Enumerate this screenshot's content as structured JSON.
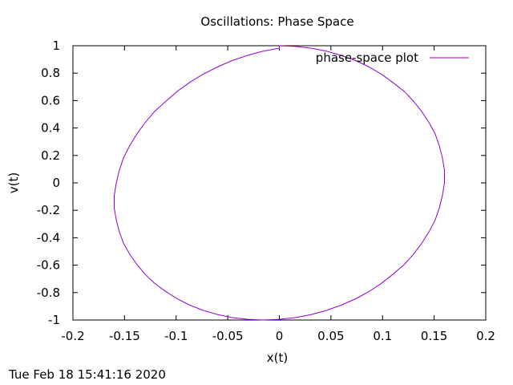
{
  "chart_data": {
    "type": "line",
    "title": "Oscillations: Phase Space",
    "xlabel": "x(t)",
    "ylabel": "v(t)",
    "xlim": [
      -0.2,
      0.2
    ],
    "ylim": [
      -1,
      1
    ],
    "xticks": [
      "-0.2",
      "-0.15",
      "-0.1",
      "-0.05",
      "0",
      "0.05",
      "0.1",
      "0.15",
      "0.2"
    ],
    "yticks": [
      "-1",
      "-0.8",
      "-0.6",
      "-0.4",
      "-0.2",
      "0",
      "0.2",
      "0.4",
      "0.6",
      "0.8",
      "1"
    ],
    "grid": false,
    "legend_position": "top-right",
    "series": [
      {
        "name": "phase-space plot",
        "color": "#9400d3",
        "x": [
          0.0,
          0.016,
          0.031,
          0.046,
          0.06,
          0.074,
          0.087,
          0.099,
          0.11,
          0.121,
          0.13,
          0.138,
          0.145,
          0.151,
          0.155,
          0.158,
          0.16,
          0.16,
          0.158,
          0.155,
          0.151,
          0.145,
          0.138,
          0.13,
          0.121,
          0.11,
          0.099,
          0.087,
          0.074,
          0.06,
          0.046,
          0.031,
          0.016,
          0.0,
          -0.016,
          -0.031,
          -0.046,
          -0.06,
          -0.074,
          -0.087,
          -0.099,
          -0.11,
          -0.121,
          -0.13,
          -0.138,
          -0.145,
          -0.151,
          -0.155,
          -0.158,
          -0.16,
          -0.16,
          -0.158,
          -0.155,
          -0.151,
          -0.145,
          -0.138,
          -0.13,
          -0.121,
          -0.11,
          -0.099,
          -0.087,
          -0.074,
          -0.06,
          -0.046,
          -0.031,
          -0.016,
          0.0
        ],
        "y": [
          1.0,
          0.995,
          0.982,
          0.96,
          0.929,
          0.891,
          0.845,
          0.792,
          0.732,
          0.667,
          0.595,
          0.52,
          0.44,
          0.357,
          0.271,
          0.183,
          0.093,
          0.0,
          -0.093,
          -0.183,
          -0.271,
          -0.357,
          -0.44,
          -0.52,
          -0.595,
          -0.667,
          -0.732,
          -0.792,
          -0.845,
          -0.891,
          -0.929,
          -0.96,
          -0.982,
          -0.995,
          -1.0,
          -0.995,
          -0.982,
          -0.96,
          -0.929,
          -0.891,
          -0.845,
          -0.792,
          -0.732,
          -0.667,
          -0.595,
          -0.52,
          -0.44,
          -0.357,
          -0.271,
          -0.183,
          -0.093,
          0.0,
          0.093,
          0.183,
          0.271,
          0.357,
          0.44,
          0.52,
          0.595,
          0.667,
          0.732,
          0.792,
          0.845,
          0.891,
          0.929,
          0.96,
          0.982
        ]
      }
    ]
  },
  "footer": {
    "timestamp": "Tue Feb 18 15:41:16 2020"
  }
}
